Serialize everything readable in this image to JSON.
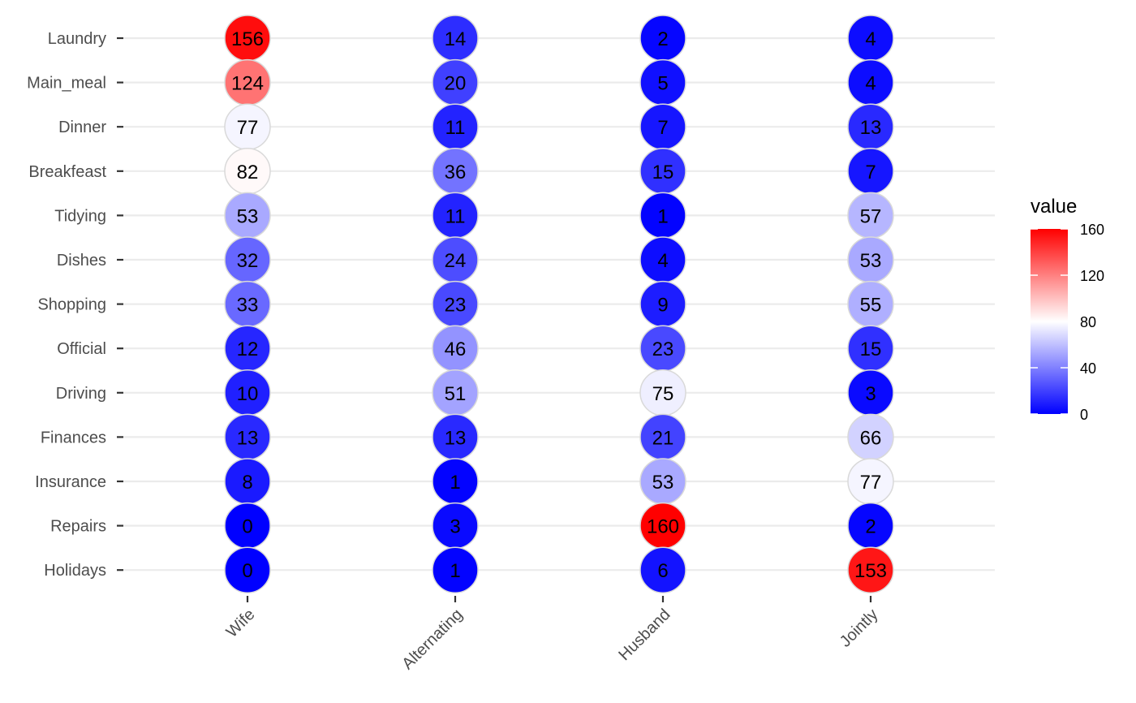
{
  "chart_data": {
    "type": "heatmap",
    "x_categories": [
      "Wife",
      "Alternating",
      "Husband",
      "Jointly"
    ],
    "y_categories": [
      "Laundry",
      "Main_meal",
      "Dinner",
      "Breakfeast",
      "Tidying",
      "Dishes",
      "Shopping",
      "Official",
      "Driving",
      "Finances",
      "Insurance",
      "Repairs",
      "Holidays"
    ],
    "values": [
      [
        156,
        14,
        2,
        4
      ],
      [
        124,
        20,
        5,
        4
      ],
      [
        77,
        11,
        7,
        13
      ],
      [
        82,
        36,
        15,
        7
      ],
      [
        53,
        11,
        1,
        57
      ],
      [
        32,
        24,
        4,
        53
      ],
      [
        33,
        23,
        9,
        55
      ],
      [
        12,
        46,
        23,
        15
      ],
      [
        10,
        51,
        75,
        3
      ],
      [
        13,
        13,
        21,
        66
      ],
      [
        8,
        1,
        53,
        77
      ],
      [
        0,
        3,
        160,
        2
      ],
      [
        0,
        1,
        6,
        153
      ]
    ],
    "legend": {
      "title": "value",
      "ticks": [
        0,
        40,
        80,
        120,
        160
      ],
      "range": [
        0,
        160
      ],
      "midpoint": 80,
      "colors": {
        "low": "#0000ff",
        "mid": "#ffffff",
        "high": "#ff0000"
      }
    },
    "grid": "horizontal",
    "legend_position": "right"
  }
}
